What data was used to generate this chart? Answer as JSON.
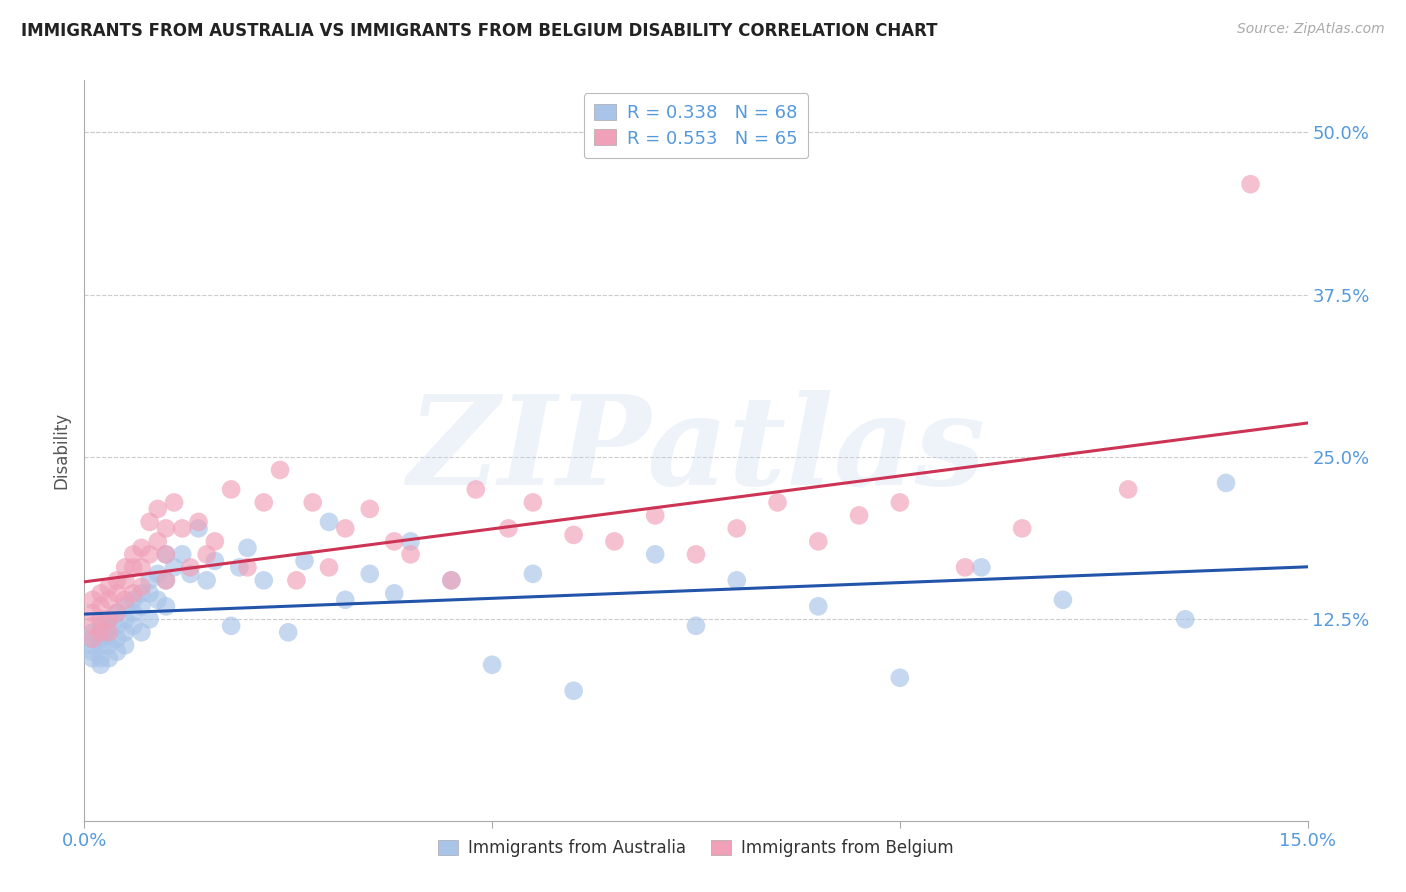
{
  "title": "IMMIGRANTS FROM AUSTRALIA VS IMMIGRANTS FROM BELGIUM DISABILITY CORRELATION CHART",
  "source": "Source: ZipAtlas.com",
  "ylabel": "Disability",
  "xlim": [
    0.0,
    0.15
  ],
  "ylim": [
    -0.03,
    0.54
  ],
  "xticks": [
    0.0,
    0.05,
    0.1,
    0.15
  ],
  "xtick_labels": [
    "0.0%",
    "",
    "",
    "15.0%"
  ],
  "ytick_labels": [
    "12.5%",
    "25.0%",
    "37.5%",
    "50.0%"
  ],
  "yticks": [
    0.125,
    0.25,
    0.375,
    0.5
  ],
  "australia_R": 0.338,
  "australia_N": 68,
  "belgium_R": 0.553,
  "belgium_N": 65,
  "australia_color": "#a8c4e8",
  "belgium_color": "#f0a0b8",
  "australia_line_color": "#2255aa",
  "belgium_line_color": "#cc3355",
  "background_color": "#ffffff",
  "watermark_text": "ZIPatlas",
  "australia_x": [
    0.001,
    0.001,
    0.001,
    0.001,
    0.001,
    0.002,
    0.002,
    0.002,
    0.002,
    0.002,
    0.002,
    0.003,
    0.003,
    0.003,
    0.003,
    0.003,
    0.004,
    0.004,
    0.004,
    0.004,
    0.005,
    0.005,
    0.005,
    0.005,
    0.006,
    0.006,
    0.006,
    0.007,
    0.007,
    0.007,
    0.008,
    0.008,
    0.008,
    0.009,
    0.009,
    0.01,
    0.01,
    0.01,
    0.011,
    0.012,
    0.013,
    0.014,
    0.015,
    0.016,
    0.018,
    0.019,
    0.02,
    0.022,
    0.025,
    0.027,
    0.03,
    0.032,
    0.035,
    0.038,
    0.04,
    0.045,
    0.05,
    0.055,
    0.06,
    0.07,
    0.075,
    0.08,
    0.09,
    0.1,
    0.11,
    0.12,
    0.135,
    0.14
  ],
  "australia_y": [
    0.115,
    0.11,
    0.105,
    0.1,
    0.095,
    0.12,
    0.115,
    0.11,
    0.105,
    0.095,
    0.09,
    0.125,
    0.118,
    0.112,
    0.105,
    0.095,
    0.13,
    0.12,
    0.11,
    0.1,
    0.135,
    0.125,
    0.115,
    0.105,
    0.14,
    0.13,
    0.12,
    0.145,
    0.135,
    0.115,
    0.155,
    0.145,
    0.125,
    0.16,
    0.14,
    0.175,
    0.155,
    0.135,
    0.165,
    0.175,
    0.16,
    0.195,
    0.155,
    0.17,
    0.12,
    0.165,
    0.18,
    0.155,
    0.115,
    0.17,
    0.2,
    0.14,
    0.16,
    0.145,
    0.185,
    0.155,
    0.09,
    0.16,
    0.07,
    0.175,
    0.12,
    0.155,
    0.135,
    0.08,
    0.165,
    0.14,
    0.125,
    0.23
  ],
  "belgium_x": [
    0.001,
    0.001,
    0.001,
    0.001,
    0.002,
    0.002,
    0.002,
    0.002,
    0.003,
    0.003,
    0.003,
    0.003,
    0.004,
    0.004,
    0.004,
    0.005,
    0.005,
    0.005,
    0.006,
    0.006,
    0.006,
    0.007,
    0.007,
    0.007,
    0.008,
    0.008,
    0.009,
    0.009,
    0.01,
    0.01,
    0.01,
    0.011,
    0.012,
    0.013,
    0.014,
    0.015,
    0.016,
    0.018,
    0.02,
    0.022,
    0.024,
    0.026,
    0.028,
    0.03,
    0.032,
    0.035,
    0.038,
    0.04,
    0.045,
    0.048,
    0.052,
    0.055,
    0.06,
    0.065,
    0.07,
    0.075,
    0.08,
    0.085,
    0.09,
    0.095,
    0.1,
    0.108,
    0.115,
    0.128,
    0.143
  ],
  "belgium_y": [
    0.14,
    0.13,
    0.12,
    0.11,
    0.145,
    0.135,
    0.125,
    0.115,
    0.15,
    0.14,
    0.125,
    0.115,
    0.155,
    0.145,
    0.13,
    0.165,
    0.155,
    0.14,
    0.175,
    0.165,
    0.145,
    0.18,
    0.165,
    0.15,
    0.2,
    0.175,
    0.21,
    0.185,
    0.195,
    0.175,
    0.155,
    0.215,
    0.195,
    0.165,
    0.2,
    0.175,
    0.185,
    0.225,
    0.165,
    0.215,
    0.24,
    0.155,
    0.215,
    0.165,
    0.195,
    0.21,
    0.185,
    0.175,
    0.155,
    0.225,
    0.195,
    0.215,
    0.19,
    0.185,
    0.205,
    0.175,
    0.195,
    0.215,
    0.185,
    0.205,
    0.215,
    0.165,
    0.195,
    0.225,
    0.46
  ]
}
